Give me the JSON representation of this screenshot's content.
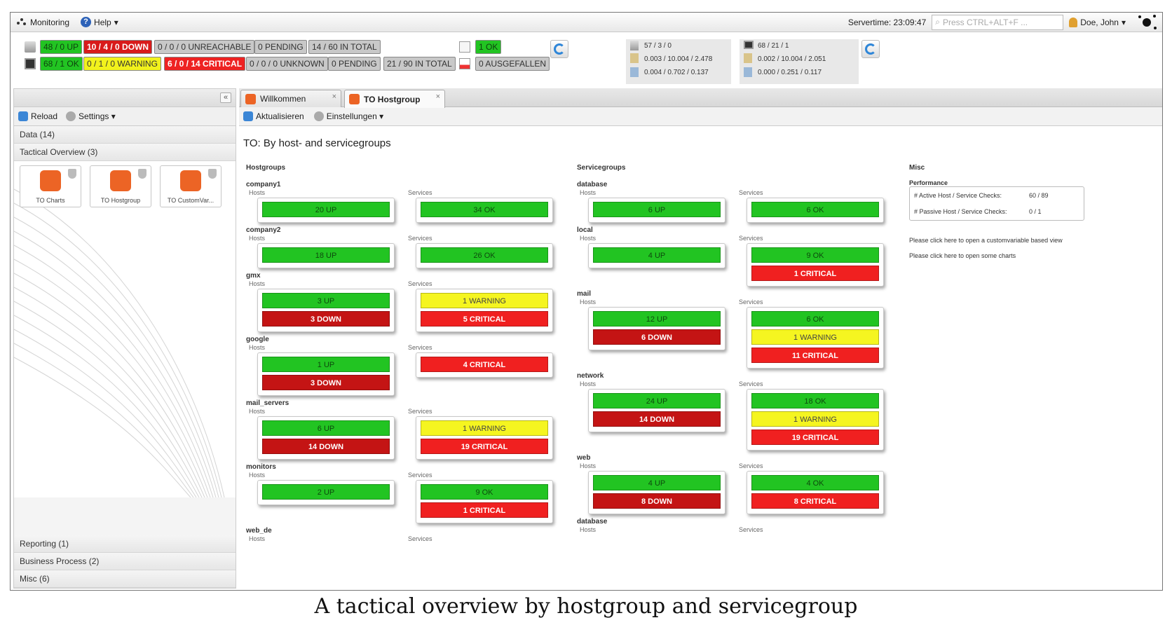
{
  "menubar": {
    "monitoring": "Monitoring",
    "help": "Help",
    "servertime": "Servertime: 23:09:47",
    "search_placeholder": "Press CTRL+ALT+F ...",
    "user": "Doe, John"
  },
  "status": {
    "hosts": [
      "48 / 0 UP",
      "10 / 4 / 0 DOWN",
      "0 / 0 / 0 UNREACHABLE",
      "0 PENDING",
      "14 / 60 IN TOTAL"
    ],
    "services": [
      "68 / 1 OK",
      "0 / 1 / 0 WARNING",
      "6 / 0 / 14 CRITICAL",
      "0 / 0 / 0 UNKNOWN",
      "0 PENDING",
      "21 / 90 IN TOTAL"
    ],
    "ok": "1 OK",
    "ausgefallen": "0 AUSGEFALLEN",
    "perf_left": [
      "57 / 3 / 0",
      "0.003 / 10.004 / 2.478",
      "0.004 / 0.702 / 0.137"
    ],
    "perf_right": [
      "68 / 21 / 1",
      "0.002 / 10.004 / 2.051",
      "0.000 / 0.251 / 0.117"
    ],
    "colors": {
      "green": "#22c422",
      "red": "#d81b1b",
      "yellow": "#f2f21c",
      "gray": "#c8c8c8"
    }
  },
  "leftpanel": {
    "reload": "Reload",
    "settings": "Settings",
    "sections_top": [
      "Data (14)",
      "Tactical Overview (3)"
    ],
    "tiles": [
      "TO Charts",
      "TO Hostgroup",
      "TO CustomVar..."
    ],
    "sections_bottom": [
      "Reporting (1)",
      "Business Process (2)",
      "Misc (6)"
    ]
  },
  "tabs": [
    "Willkommen",
    "TO Hostgroup"
  ],
  "maintoolbar": {
    "refresh": "Aktualisieren",
    "settings": "Einstellungen"
  },
  "content": {
    "title": "TO: By host- and servicegroups",
    "hostgroups_heading": "Hostgroups",
    "servicegroups_heading": "Servicegroups",
    "misc_heading": "Misc",
    "hosts_label": "Hosts",
    "services_label": "Services",
    "hostgroups": [
      {
        "name": "company1",
        "hosts": [
          "20 UP"
        ],
        "services": [
          "34 OK"
        ]
      },
      {
        "name": "company2",
        "hosts": [
          "18 UP"
        ],
        "services": [
          "26 OK"
        ]
      },
      {
        "name": "gmx",
        "hosts": [
          "3 UP",
          "3 DOWN"
        ],
        "services": [
          "1 WARNING",
          "5 CRITICAL"
        ]
      },
      {
        "name": "google",
        "hosts": [
          "1 UP",
          "3 DOWN"
        ],
        "services": [
          "4 CRITICAL"
        ]
      },
      {
        "name": "mail_servers",
        "hosts": [
          "6 UP",
          "14 DOWN"
        ],
        "services": [
          "1 WARNING",
          "19 CRITICAL"
        ]
      },
      {
        "name": "monitors",
        "hosts": [
          "2 UP"
        ],
        "services": [
          "9 OK",
          "1 CRITICAL"
        ]
      },
      {
        "name": "web_de",
        "hosts": [],
        "services": []
      }
    ],
    "servicegroups": [
      {
        "name": "database",
        "hosts": [
          "6 UP"
        ],
        "services": [
          "6 OK"
        ]
      },
      {
        "name": "local",
        "hosts": [
          "4 UP"
        ],
        "services": [
          "9 OK",
          "1 CRITICAL"
        ]
      },
      {
        "name": "mail",
        "hosts": [
          "12 UP",
          "6 DOWN"
        ],
        "services": [
          "6 OK",
          "1 WARNING",
          "11 CRITICAL"
        ]
      },
      {
        "name": "network",
        "hosts": [
          "24 UP",
          "14 DOWN"
        ],
        "services": [
          "18 OK",
          "1 WARNING",
          "19 CRITICAL"
        ]
      },
      {
        "name": "web",
        "hosts": [
          "4 UP",
          "8 DOWN"
        ],
        "services": [
          "4 OK",
          "8 CRITICAL"
        ]
      },
      {
        "name": "database",
        "hosts": [],
        "services": []
      }
    ],
    "misc": {
      "performance_heading": "Performance",
      "active_label": "# Active Host / Service Checks:",
      "active_value": "60 / 89",
      "passive_label": "# Passive Host / Service Checks:",
      "passive_value": "0 / 1",
      "link1": "Please click here to open a customvariable based view",
      "link2": "Please click here to open some charts"
    }
  },
  "caption": "A tactical overview by hostgroup and servicegroup"
}
